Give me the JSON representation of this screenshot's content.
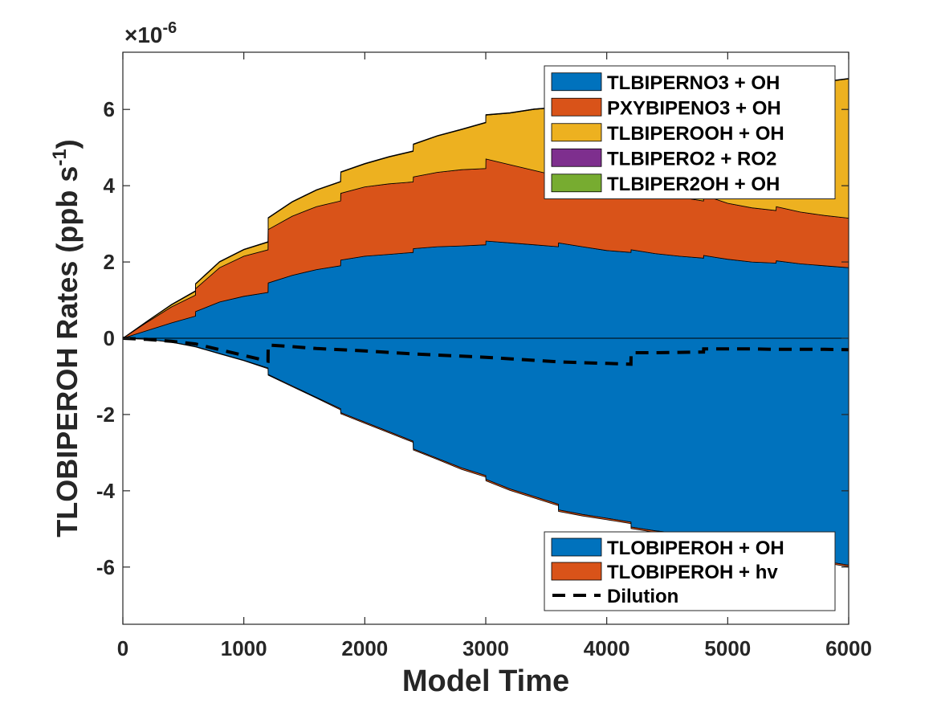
{
  "chart_data": {
    "type": "area",
    "xlabel": "Model Time",
    "ylabel_main": "TLOBIPEROH Rates (ppb s",
    "ylabel_sup": "-1",
    "ylabel_close": ")",
    "exponent_prefix": "×10",
    "exponent_power": "-6",
    "xlim": [
      0,
      6000
    ],
    "ylim": [
      -7.5,
      7.5
    ],
    "scale": 1e-06,
    "xticks": [
      0,
      1000,
      2000,
      3000,
      4000,
      5000,
      6000
    ],
    "xtick_labels": [
      "0",
      "1000",
      "2000",
      "3000",
      "4000",
      "5000",
      "6000"
    ],
    "yticks": [
      -6,
      -4,
      -2,
      0,
      2,
      4,
      6
    ],
    "ytick_labels": [
      "-6",
      "-4",
      "-2",
      "0",
      "2",
      "4",
      "6"
    ],
    "x": [
      0,
      200,
      400,
      600,
      601,
      800,
      1000,
      1200,
      1201,
      1400,
      1600,
      1800,
      1801,
      2000,
      2200,
      2400,
      2401,
      2600,
      2800,
      3000,
      3001,
      3200,
      3400,
      3600,
      3601,
      3800,
      4000,
      4200,
      4201,
      4400,
      4600,
      4800,
      4801,
      5000,
      5200,
      5400,
      5401,
      5600,
      5800,
      6000
    ],
    "production_series": [
      {
        "name": "TLBIPERNO3 + OH",
        "color": "#0072BD",
        "values": [
          0,
          0.2,
          0.4,
          0.58,
          0.7,
          0.95,
          1.1,
          1.2,
          1.45,
          1.65,
          1.8,
          1.9,
          2.05,
          2.15,
          2.2,
          2.25,
          2.35,
          2.4,
          2.42,
          2.45,
          2.55,
          2.5,
          2.45,
          2.4,
          2.5,
          2.4,
          2.3,
          2.25,
          2.32,
          2.22,
          2.15,
          2.1,
          2.17,
          2.07,
          2.0,
          1.97,
          2.03,
          1.95,
          1.9,
          1.85
        ]
      },
      {
        "name": "PXYBIPENO3 + OH",
        "color": "#D95319",
        "values": [
          0,
          0.22,
          0.42,
          0.55,
          0.6,
          0.9,
          1.05,
          1.12,
          1.4,
          1.55,
          1.65,
          1.7,
          1.75,
          1.82,
          1.85,
          1.85,
          1.88,
          1.95,
          2.0,
          2.0,
          2.15,
          2.05,
          1.95,
          1.85,
          1.95,
          1.85,
          1.75,
          1.7,
          1.78,
          1.65,
          1.55,
          1.5,
          1.58,
          1.47,
          1.42,
          1.38,
          1.42,
          1.36,
          1.32,
          1.3
        ]
      },
      {
        "name": "TLBIPEROOH + OH",
        "color": "#EDB120",
        "values": [
          0,
          0.02,
          0.05,
          0.1,
          0.12,
          0.15,
          0.17,
          0.2,
          0.3,
          0.37,
          0.43,
          0.5,
          0.55,
          0.6,
          0.7,
          0.8,
          0.85,
          0.95,
          1.05,
          1.2,
          1.15,
          1.35,
          1.6,
          1.8,
          1.78,
          2.05,
          2.3,
          2.5,
          2.45,
          2.75,
          3.0,
          3.2,
          3.0,
          3.2,
          3.35,
          3.45,
          3.3,
          3.4,
          3.5,
          3.65
        ]
      },
      {
        "name": "TLBIPERO2 + RO2",
        "color": "#7E2F8E",
        "values": [
          0,
          0.005,
          0.01,
          0.01,
          0.01,
          0.01,
          0.01,
          0.01,
          0.01,
          0.01,
          0.01,
          0.01,
          0.01,
          0.01,
          0.01,
          0.01,
          0.01,
          0.01,
          0.01,
          0.01,
          0.01,
          0.01,
          0.01,
          0.01,
          0.01,
          0.01,
          0.01,
          0.01,
          0.01,
          0.01,
          0.01,
          0.01,
          0.01,
          0.01,
          0.01,
          0.01,
          0.01,
          0.01,
          0.01,
          0.01
        ]
      },
      {
        "name": "TLBIPER2OH + OH",
        "color": "#77AC30",
        "values": [
          0,
          0.003,
          0.005,
          0.005,
          0.005,
          0.005,
          0.005,
          0.005,
          0.005,
          0.005,
          0.005,
          0.005,
          0.005,
          0.005,
          0.005,
          0.005,
          0.005,
          0.005,
          0.005,
          0.005,
          0.005,
          0.005,
          0.005,
          0.005,
          0.005,
          0.005,
          0.005,
          0.005,
          0.005,
          0.005,
          0.005,
          0.005,
          0.005,
          0.005,
          0.005,
          0.005,
          0.005,
          0.005,
          0.005,
          0.005
        ]
      }
    ],
    "loss_series": [
      {
        "name": "TLOBIPEROH + OH",
        "color": "#0072BD",
        "values": [
          0,
          -0.03,
          -0.1,
          -0.22,
          -0.22,
          -0.4,
          -0.58,
          -0.78,
          -0.95,
          -1.25,
          -1.55,
          -1.85,
          -1.95,
          -2.2,
          -2.45,
          -2.7,
          -2.9,
          -3.15,
          -3.4,
          -3.6,
          -3.7,
          -3.95,
          -4.15,
          -4.35,
          -4.5,
          -4.62,
          -4.72,
          -4.82,
          -4.95,
          -5.05,
          -5.12,
          -5.15,
          -5.25,
          -5.35,
          -5.45,
          -5.55,
          -5.65,
          -5.75,
          -5.85,
          -5.95
        ]
      },
      {
        "name": "TLOBIPEROH + hv",
        "color": "#D95319",
        "values": [
          0,
          -0.002,
          -0.005,
          -0.01,
          -0.01,
          -0.01,
          -0.01,
          -0.02,
          -0.02,
          -0.02,
          -0.02,
          -0.03,
          -0.03,
          -0.03,
          -0.03,
          -0.03,
          -0.03,
          -0.03,
          -0.04,
          -0.04,
          -0.04,
          -0.04,
          -0.04,
          -0.04,
          -0.04,
          -0.04,
          -0.04,
          -0.04,
          -0.04,
          -0.04,
          -0.04,
          -0.04,
          -0.04,
          -0.04,
          -0.04,
          -0.04,
          -0.04,
          -0.04,
          -0.04,
          -0.04
        ]
      }
    ],
    "dilution": {
      "name": "Dilution",
      "color": "#000000",
      "x": [
        0,
        200,
        400,
        600,
        800,
        1000,
        1200,
        1201,
        1400,
        1600,
        1800,
        2000,
        2200,
        2400,
        2600,
        2800,
        3000,
        3200,
        3400,
        3600,
        3800,
        4000,
        4200,
        4201,
        4400,
        4600,
        4800,
        4801,
        5000,
        5200,
        5400,
        5600,
        5800,
        6000
      ],
      "values": [
        0,
        -0.03,
        -0.08,
        -0.15,
        -0.3,
        -0.45,
        -0.6,
        -0.18,
        -0.22,
        -0.27,
        -0.3,
        -0.33,
        -0.37,
        -0.41,
        -0.44,
        -0.47,
        -0.5,
        -0.54,
        -0.58,
        -0.62,
        -0.64,
        -0.66,
        -0.68,
        -0.38,
        -0.38,
        -0.37,
        -0.36,
        -0.28,
        -0.28,
        -0.28,
        -0.29,
        -0.29,
        -0.29,
        -0.3
      ]
    },
    "legend_top_placement": "top-right",
    "legend_bottom_placement": "bottom-right",
    "grid": false
  }
}
